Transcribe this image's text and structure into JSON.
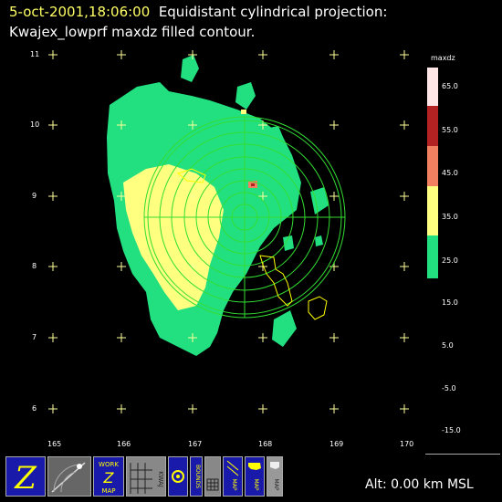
{
  "title": {
    "timestamp": "5-oct-2001,18:06:00",
    "projection": "Equidistant cylindrical projection:",
    "subtitle": "Kwajex_lowprf maxdz filled contour."
  },
  "axes": {
    "y_ticks": [
      "11",
      "10",
      "9",
      "8",
      "7",
      "6"
    ],
    "x_ticks": [
      "165",
      "166",
      "167",
      "168",
      "169",
      "170"
    ]
  },
  "colorbar": {
    "title": "maxdz",
    "labels": [
      "65.0",
      "55.0",
      "45.0",
      "35.0",
      "25.0",
      "15.0",
      "5.0",
      "-5.0",
      "-15.0"
    ],
    "colors": {
      "c65": "#ffe6e6",
      "c55": "#b22222",
      "c45": "#f08060",
      "c35": "#ffff80",
      "c25": "#22e080"
    }
  },
  "status": {
    "altitude": "Alt: 0.00 km MSL"
  },
  "toolbar": {
    "z_label": "Z",
    "work_label": "WORK",
    "work_z": "Z",
    "work_map": "MAP",
    "kwaj_label": "KWAJ",
    "bounds_label": "BOUNDS",
    "map_label": "MAP"
  }
}
